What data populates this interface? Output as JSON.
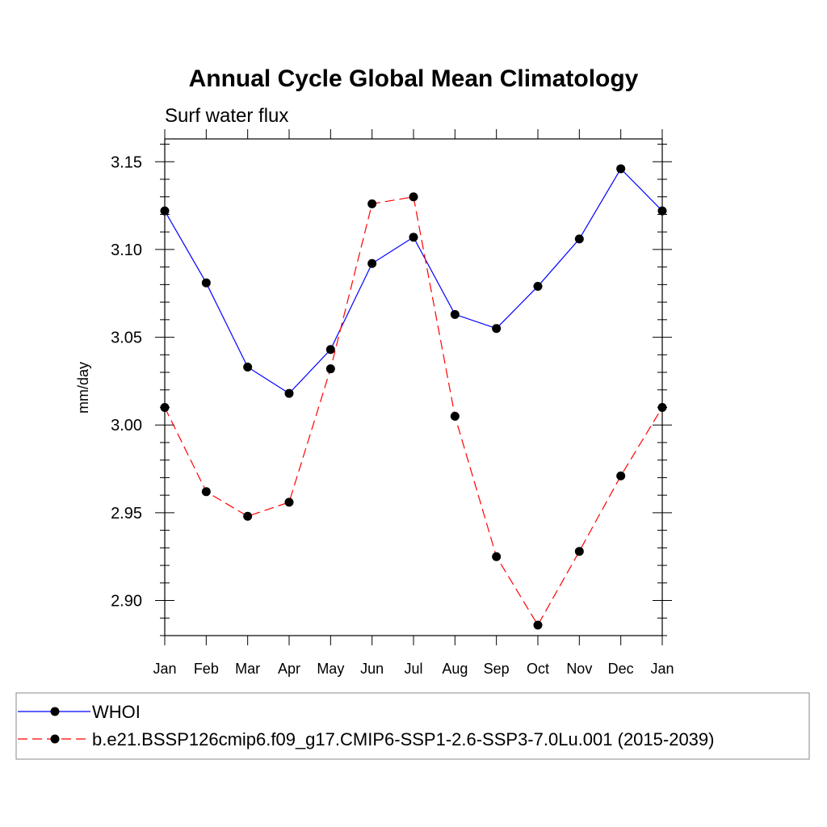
{
  "chart_data": {
    "type": "line",
    "title": "Annual Cycle Global Mean Climatology",
    "subtitle": "Surf water flux",
    "xlabel": "",
    "ylabel": "mm/day",
    "categories": [
      "Jan",
      "Feb",
      "Mar",
      "Apr",
      "May",
      "Jun",
      "Jul",
      "Aug",
      "Sep",
      "Oct",
      "Nov",
      "Dec",
      "Jan"
    ],
    "ylim": [
      2.88,
      3.163
    ],
    "yticks": [
      "3.15",
      "3.10",
      "3.05",
      "3.00",
      "2.95",
      "2.90"
    ],
    "ytick_values": [
      3.15,
      3.1,
      3.05,
      3.0,
      2.95,
      2.9
    ],
    "grid": false,
    "legend_position": "bottom",
    "series": [
      {
        "name": "WHOI",
        "color": "#0000ff",
        "dash": "solid",
        "marker": "filled-circle",
        "values": [
          3.122,
          3.081,
          3.033,
          3.018,
          3.043,
          3.092,
          3.107,
          3.063,
          3.055,
          3.079,
          3.106,
          3.146,
          3.122
        ]
      },
      {
        "name": "b.e21.BSSP126cmip6.f09_g17.CMIP6-SSP1-2.6-SSP3-7.0Lu.001 (2015-2039)",
        "color": "#ff0000",
        "dash": "dashed",
        "marker": "filled-circle",
        "values": [
          3.01,
          2.962,
          2.948,
          2.956,
          3.032,
          3.126,
          3.13,
          3.005,
          2.925,
          2.886,
          2.928,
          2.971,
          3.01
        ]
      }
    ]
  }
}
